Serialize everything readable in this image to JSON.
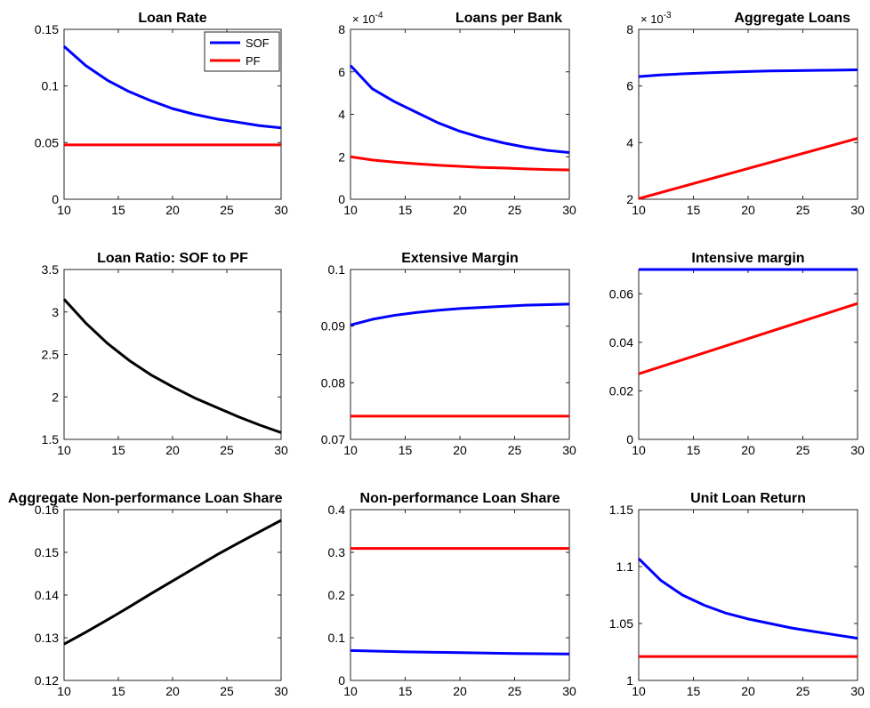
{
  "chart_data": [
    {
      "type": "line",
      "title": "Loan Rate",
      "xlim": [
        10,
        30
      ],
      "ylim": [
        0,
        0.15
      ],
      "xticks": [
        "10",
        "15",
        "20",
        "25",
        "30"
      ],
      "yticks": [
        "0",
        "0.05",
        "0.1",
        "0.15"
      ],
      "legend": {
        "placement": "top-right",
        "entries": [
          "SOF",
          "PF"
        ]
      },
      "series": [
        {
          "name": "SOF",
          "color": "#0000ff",
          "x": [
            10,
            12,
            14,
            16,
            18,
            20,
            22,
            24,
            26,
            28,
            30
          ],
          "y": [
            0.135,
            0.118,
            0.105,
            0.095,
            0.087,
            0.08,
            0.075,
            0.071,
            0.068,
            0.065,
            0.063
          ]
        },
        {
          "name": "PF",
          "color": "#ff0000",
          "x": [
            10,
            30
          ],
          "y": [
            0.048,
            0.048
          ]
        }
      ]
    },
    {
      "type": "line",
      "title": "Loans per Bank",
      "exponent": "-4",
      "xlim": [
        10,
        30
      ],
      "ylim": [
        0,
        8
      ],
      "xticks": [
        "10",
        "15",
        "20",
        "25",
        "30"
      ],
      "yticks": [
        "0",
        "2",
        "4",
        "6",
        "8"
      ],
      "series": [
        {
          "color": "#0000ff",
          "x": [
            10,
            12,
            14,
            16,
            18,
            20,
            22,
            24,
            26,
            28,
            30
          ],
          "y": [
            6.3,
            5.2,
            4.6,
            4.1,
            3.6,
            3.2,
            2.9,
            2.65,
            2.45,
            2.3,
            2.2
          ]
        },
        {
          "color": "#ff0000",
          "x": [
            10,
            12,
            14,
            16,
            18,
            20,
            22,
            24,
            26,
            28,
            30
          ],
          "y": [
            2.0,
            1.85,
            1.75,
            1.67,
            1.6,
            1.55,
            1.5,
            1.47,
            1.43,
            1.4,
            1.38
          ]
        }
      ]
    },
    {
      "type": "line",
      "title": "Aggregate Loans",
      "exponent": "-3",
      "xlim": [
        10,
        30
      ],
      "ylim": [
        2,
        8
      ],
      "xticks": [
        "10",
        "15",
        "20",
        "25",
        "30"
      ],
      "yticks": [
        "2",
        "4",
        "6",
        "8"
      ],
      "series": [
        {
          "color": "#0000ff",
          "x": [
            10,
            12,
            14,
            16,
            18,
            20,
            22,
            24,
            26,
            28,
            30
          ],
          "y": [
            6.33,
            6.39,
            6.43,
            6.46,
            6.49,
            6.51,
            6.53,
            6.54,
            6.55,
            6.56,
            6.57
          ]
        },
        {
          "color": "#ff0000",
          "x": [
            10,
            30
          ],
          "y": [
            2.02,
            4.15
          ]
        }
      ]
    },
    {
      "type": "line",
      "title": "Loan Ratio: SOF to PF",
      "xlim": [
        10,
        30
      ],
      "ylim": [
        1.5,
        3.5
      ],
      "xticks": [
        "10",
        "15",
        "20",
        "25",
        "30"
      ],
      "yticks": [
        "1.5",
        "2",
        "2.5",
        "3",
        "3.5"
      ],
      "series": [
        {
          "color": "#000000",
          "x": [
            10,
            12,
            14,
            16,
            18,
            20,
            22,
            24,
            26,
            28,
            30
          ],
          "y": [
            3.15,
            2.87,
            2.63,
            2.43,
            2.26,
            2.12,
            1.99,
            1.88,
            1.77,
            1.67,
            1.58
          ]
        }
      ]
    },
    {
      "type": "line",
      "title": "Extensive Margin",
      "xlim": [
        10,
        30
      ],
      "ylim": [
        0.07,
        0.1
      ],
      "xticks": [
        "10",
        "15",
        "20",
        "25",
        "30"
      ],
      "yticks": [
        "0.07",
        "0.08",
        "0.09",
        "0.1"
      ],
      "series": [
        {
          "color": "#0000ff",
          "x": [
            10,
            12,
            14,
            16,
            18,
            20,
            22,
            24,
            26,
            28,
            30
          ],
          "y": [
            0.0902,
            0.0912,
            0.0919,
            0.0924,
            0.0928,
            0.0931,
            0.0933,
            0.0935,
            0.0937,
            0.0938,
            0.0939
          ]
        },
        {
          "color": "#ff0000",
          "x": [
            10,
            30
          ],
          "y": [
            0.0741,
            0.0741
          ]
        }
      ]
    },
    {
      "type": "line",
      "title": "Intensive margin",
      "xlim": [
        10,
        30
      ],
      "ylim": [
        0,
        0.07
      ],
      "xticks": [
        "10",
        "15",
        "20",
        "25",
        "30"
      ],
      "yticks": [
        "0",
        "0.02",
        "0.04",
        "0.06"
      ],
      "series": [
        {
          "color": "#0000ff",
          "x": [
            10,
            30
          ],
          "y": [
            0.07,
            0.07
          ]
        },
        {
          "color": "#ff0000",
          "x": [
            10,
            30
          ],
          "y": [
            0.027,
            0.056
          ]
        }
      ]
    },
    {
      "type": "line",
      "title": "Aggregate Non-performance Loan Share",
      "xlim": [
        10,
        30
      ],
      "ylim": [
        0.12,
        0.16
      ],
      "xticks": [
        "10",
        "15",
        "20",
        "25",
        "30"
      ],
      "yticks": [
        "0.12",
        "0.13",
        "0.14",
        "0.15",
        "0.16"
      ],
      "series": [
        {
          "color": "#000000",
          "x": [
            10,
            12,
            14,
            16,
            18,
            20,
            22,
            24,
            26,
            28,
            30
          ],
          "y": [
            0.1285,
            0.1313,
            0.1342,
            0.1372,
            0.1403,
            0.1433,
            0.1463,
            0.1493,
            0.1521,
            0.1548,
            0.1575
          ]
        }
      ]
    },
    {
      "type": "line",
      "title": "Non-performance Loan Share",
      "xlim": [
        10,
        30
      ],
      "ylim": [
        0,
        0.4
      ],
      "xticks": [
        "10",
        "15",
        "20",
        "25",
        "30"
      ],
      "yticks": [
        "0",
        "0.1",
        "0.2",
        "0.3",
        "0.4"
      ],
      "series": [
        {
          "color": "#0000ff",
          "x": [
            10,
            15,
            20,
            25,
            30
          ],
          "y": [
            0.07,
            0.067,
            0.065,
            0.063,
            0.062
          ]
        },
        {
          "color": "#ff0000",
          "x": [
            10,
            30
          ],
          "y": [
            0.309,
            0.309
          ]
        }
      ]
    },
    {
      "type": "line",
      "title": "Unit Loan Return",
      "xlim": [
        10,
        30
      ],
      "ylim": [
        1,
        1.15
      ],
      "xticks": [
        "10",
        "15",
        "20",
        "25",
        "30"
      ],
      "yticks": [
        "1",
        "1.05",
        "1.1",
        "1.15"
      ],
      "series": [
        {
          "color": "#0000ff",
          "x": [
            10,
            12,
            14,
            16,
            18,
            20,
            22,
            24,
            26,
            28,
            30
          ],
          "y": [
            1.107,
            1.088,
            1.075,
            1.066,
            1.059,
            1.054,
            1.05,
            1.046,
            1.043,
            1.04,
            1.037
          ]
        },
        {
          "color": "#ff0000",
          "x": [
            10,
            30
          ],
          "y": [
            1.021,
            1.021
          ]
        }
      ]
    }
  ]
}
